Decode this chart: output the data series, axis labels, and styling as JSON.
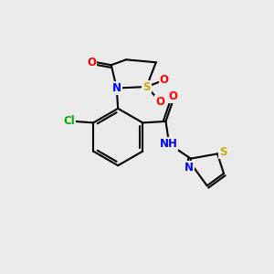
{
  "background_color": "#ebebeb",
  "bond_color": "#000000",
  "atom_colors": {
    "O": "#ff0000",
    "N": "#0000ff",
    "S": "#ccaa00",
    "Cl": "#00aa00",
    "C": "#000000",
    "H": "#000000"
  },
  "figsize": [
    3.0,
    3.0
  ],
  "dpi": 100
}
